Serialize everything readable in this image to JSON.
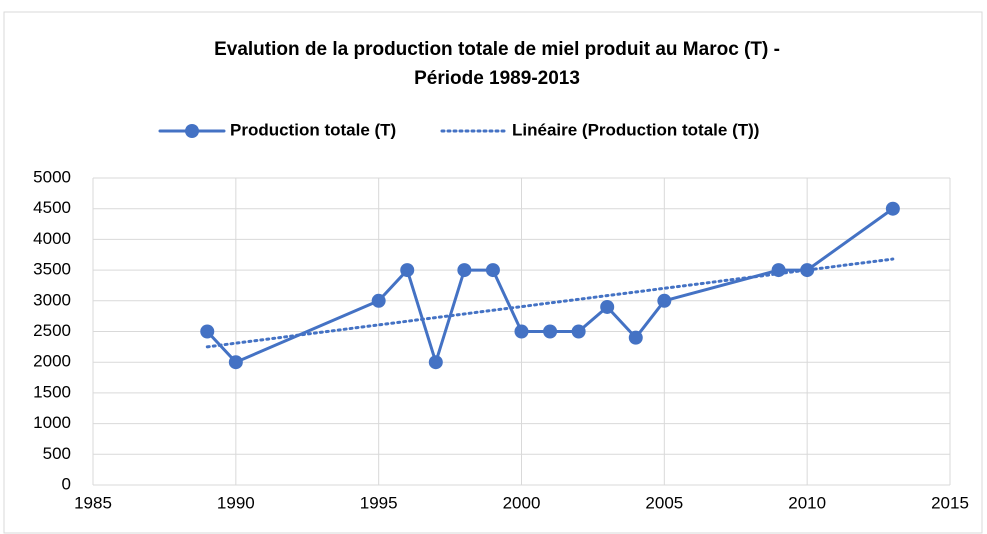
{
  "chart_data": {
    "type": "line",
    "title": [
      "Evalution de la production totale de miel produit au Maroc (T) -",
      "Période 1989-2013"
    ],
    "series": [
      {
        "name": "Production totale (T)",
        "color": "#4472c4",
        "style": "solid",
        "marker": "circle",
        "x": [
          1989,
          1990,
          1995,
          1996,
          1997,
          1998,
          1999,
          2000,
          2001,
          2002,
          2003,
          2004,
          2005,
          2009,
          2010,
          2013
        ],
        "values": [
          2500,
          2000,
          3000,
          3500,
          2000,
          3500,
          3500,
          2500,
          2500,
          2500,
          2900,
          2400,
          3000,
          3500,
          3500,
          4500
        ]
      },
      {
        "name": "Linéaire (Production totale (T))",
        "color": "#4472c4",
        "style": "dotted",
        "x": [
          1989,
          2013
        ],
        "values": [
          2250,
          3680
        ]
      }
    ],
    "xlim": [
      1985,
      2015
    ],
    "xticks": [
      1985,
      1990,
      1995,
      2000,
      2005,
      2010,
      2015
    ],
    "ylim": [
      0,
      5000
    ],
    "yticks": [
      0,
      500,
      1000,
      1500,
      2000,
      2500,
      3000,
      3500,
      4000,
      4500,
      5000
    ],
    "grid": true,
    "legend": "top"
  }
}
